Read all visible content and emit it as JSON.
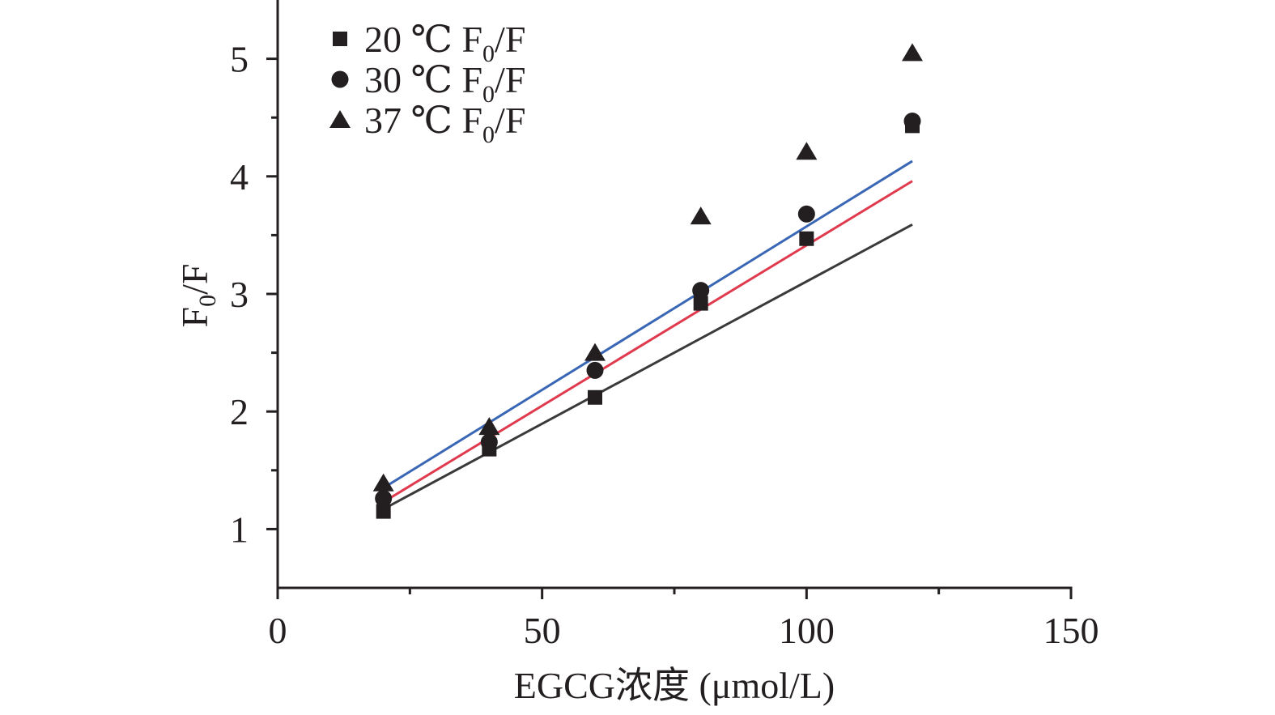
{
  "chart_data": {
    "type": "scatter",
    "title": "",
    "xlabel": "EGCG浓度 (μmol/L)",
    "ylabel_main": "F",
    "ylabel_sub": "0",
    "ylabel_tail": "/F",
    "xlim": [
      0,
      150
    ],
    "ylim": [
      0.5,
      5.5
    ],
    "xticks": [
      0,
      50,
      100,
      150
    ],
    "xtick_labels": [
      "0",
      "50",
      "100",
      "150"
    ],
    "xminor": [
      25,
      75,
      125
    ],
    "yticks": [
      1,
      2,
      3,
      4,
      5
    ],
    "ytick_labels": [
      "1",
      "2",
      "3",
      "4",
      "5"
    ],
    "yminor": [
      1.5,
      2.5,
      3.5,
      4.5
    ],
    "grid": false,
    "legend_position": "top-left",
    "x": [
      20,
      40,
      60,
      80,
      100,
      120
    ],
    "series": [
      {
        "name": "20 ℃ F0/F",
        "label_prefix": "20 ℃ F",
        "label_sub": "0",
        "label_suffix": "/F",
        "marker": "square",
        "values": [
          1.15,
          1.68,
          2.12,
          2.92,
          3.47,
          4.43
        ],
        "fit": {
          "x": [
            20,
            120
          ],
          "y": [
            1.17,
            3.59
          ],
          "color": "#3a3a3a"
        }
      },
      {
        "name": "30 ℃ F0/F",
        "label_prefix": "30 ℃ F",
        "label_sub": "0",
        "label_suffix": "/F",
        "marker": "circle",
        "values": [
          1.26,
          1.74,
          2.35,
          3.03,
          3.68,
          4.47
        ],
        "fit": {
          "x": [
            20,
            120
          ],
          "y": [
            1.23,
            3.96
          ],
          "color": "#e03a4e"
        }
      },
      {
        "name": "37 ℃ F0/F",
        "label_prefix": "37 ℃ F",
        "label_sub": "0",
        "label_suffix": "/F",
        "marker": "triangle",
        "values": [
          1.39,
          1.87,
          2.5,
          3.66,
          4.21,
          5.05
        ],
        "fit": {
          "x": [
            20,
            120
          ],
          "y": [
            1.35,
            4.13
          ],
          "color": "#3a67b5"
        }
      }
    ],
    "colors": {
      "axis": "#231f20",
      "marker": "#231f20"
    }
  }
}
